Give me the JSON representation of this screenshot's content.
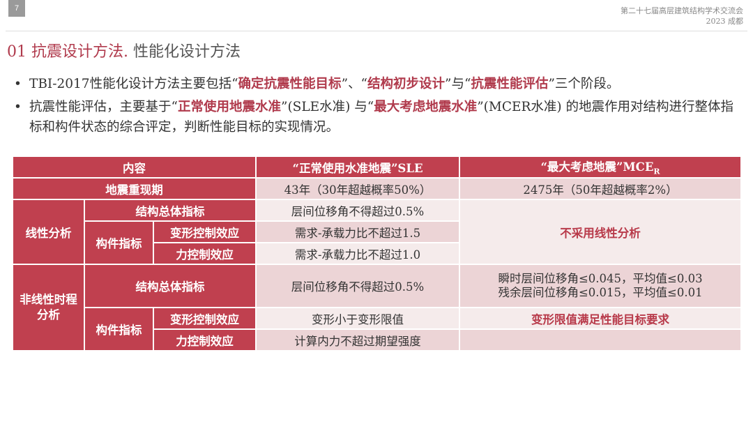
{
  "page_number": "7",
  "conference": {
    "line1": "第二十七届高层建筑结构学术交流会",
    "line2": "2023 成都"
  },
  "title": {
    "section": "01 抗震设计方法.",
    "sub": " 性能化设计方法"
  },
  "bullets": [
    {
      "parts": [
        "TBI-2017性能化设计方法主要包括“",
        "确定抗震性能目标",
        "”、“",
        "结构初步设计",
        "”与“",
        "抗震性能评估",
        "”三个阶段。"
      ]
    },
    {
      "parts": [
        "抗震性能评估，主要基于“",
        "正常使用地震水准",
        "”(SLE水准) 与“",
        "最大考虑地震水准",
        "”(MCER水准) 的地震作用对结构进行整体指标和构件状态的综合评定，判断性能目标的实现情况。"
      ]
    }
  ],
  "table": {
    "headers": {
      "content": "内容",
      "sle": "“正常使用水准地震”SLE",
      "mce": "“最大考虑地震”MCE",
      "mce_sub": "R"
    },
    "return_period": {
      "label": "地震重现期",
      "sle": "43年（30年超越概率50%）",
      "mce": "2475年（50年超越概率2%）"
    },
    "linear": {
      "label": "线性分析",
      "overall": "结构总体指标",
      "overall_sle": "层间位移角不得超过0.5%",
      "component": "构件指标",
      "deform": "变形控制效应",
      "deform_sle": "需求-承载力比不超过1.5",
      "force": "力控制效应",
      "force_sle": "需求-承载力比不超过1.0",
      "mce": "不采用线性分析"
    },
    "nonlinear": {
      "label": "非线性时程分析",
      "overall": "结构总体指标",
      "overall_sle": "层间位移角不得超过0.5%",
      "overall_mce_1": "瞬时层间位移角≤0.045，平均值≤0.03",
      "overall_mce_2": "残余层间位移角≤0.015，平均值≤0.01",
      "component": "构件指标",
      "deform": "变形控制效应",
      "deform_sle": "变形小于变形限值",
      "deform_mce": "变形限值满足性能目标要求",
      "force": "力控制效应",
      "force_sle": "计算内力不超过期望强度",
      "force_mce": ""
    }
  },
  "colors": {
    "accent": "#c0404f",
    "pink": "#ecd4d6",
    "light": "#f5ebeb",
    "red_text": "#b83a4a"
  }
}
